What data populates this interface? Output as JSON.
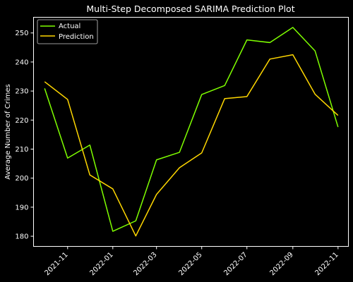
{
  "chart_data": {
    "type": "line",
    "title": "Multi-Step Decomposed SARIMA Prediction Plot",
    "xlabel": "",
    "ylabel": "Average Number of Crimes",
    "x": [
      "2021-10",
      "2021-11",
      "2021-12",
      "2022-01",
      "2022-02",
      "2022-03",
      "2022-04",
      "2022-05",
      "2022-06",
      "2022-07",
      "2022-08",
      "2022-09",
      "2022-10",
      "2022-11"
    ],
    "xticks": [
      "2021-11",
      "2022-01",
      "2022-03",
      "2022-05",
      "2022-07",
      "2022-09",
      "2022-11"
    ],
    "yticks": [
      180,
      190,
      200,
      210,
      220,
      230,
      240,
      250
    ],
    "ylim": [
      176.5,
      255.4
    ],
    "xlim": [
      "2021-09-16",
      "2022-11-15"
    ],
    "grid": false,
    "legend_position": "top-left",
    "series": [
      {
        "name": "Actual",
        "color": "#7fff00",
        "values": [
          230.9,
          206.9,
          211.4,
          181.7,
          185.3,
          206.3,
          208.9,
          228.8,
          231.9,
          247.6,
          246.7,
          251.9,
          243.8,
          217.6
        ]
      },
      {
        "name": "Prediction",
        "color": "#ffd700",
        "values": [
          233.2,
          227.1,
          201.1,
          196.3,
          180.1,
          194.4,
          203.6,
          208.7,
          227.4,
          228.1,
          241.0,
          242.5,
          228.9,
          221.6
        ]
      }
    ]
  }
}
